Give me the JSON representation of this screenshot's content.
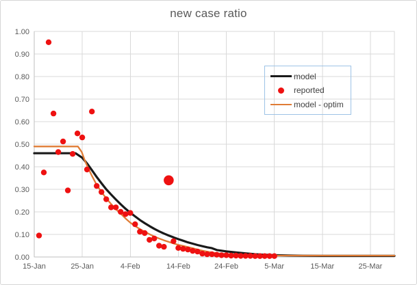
{
  "colors": {
    "model": "#1a1a1a",
    "reported": "#ee1111",
    "model_optim": "#e07c35",
    "grid": "#d9d9d9",
    "axis_line": "#bfbfbf",
    "axis_text": "#595959",
    "title_text": "#595959",
    "legend_border": "#9dc3e6",
    "legend_text": "#404040",
    "frame_border": "#d6d6d6"
  },
  "chart_data": {
    "type": "line+scatter",
    "title": "new case ratio",
    "legend_position": "right-upper-inside",
    "grid": "on",
    "x_axis": {
      "unit": "date",
      "range_days": [
        0,
        75
      ],
      "ticks": [
        {
          "day": 0,
          "label": "15-Jan"
        },
        {
          "day": 10,
          "label": "25-Jan"
        },
        {
          "day": 20,
          "label": "4-Feb"
        },
        {
          "day": 30,
          "label": "14-Feb"
        },
        {
          "day": 40,
          "label": "24-Feb"
        },
        {
          "day": 50,
          "label": "5-Mar"
        },
        {
          "day": 60,
          "label": "15-Mar"
        },
        {
          "day": 70,
          "label": "25-Mar"
        }
      ]
    },
    "y_axis": {
      "min": 0,
      "max": 1,
      "tick_step": 0.1,
      "tick_labels": [
        "0.00",
        "0.10",
        "0.20",
        "0.30",
        "0.40",
        "0.50",
        "0.60",
        "0.70",
        "0.80",
        "0.90",
        "1.00"
      ]
    },
    "series": [
      {
        "name": "model",
        "type": "line",
        "color_key": "model",
        "width": 3.2,
        "points": [
          [
            0,
            0.46
          ],
          [
            8.6,
            0.46
          ],
          [
            10,
            0.44
          ],
          [
            11,
            0.415
          ],
          [
            12,
            0.385
          ],
          [
            13,
            0.355
          ],
          [
            14,
            0.327
          ],
          [
            15,
            0.3
          ],
          [
            16,
            0.277
          ],
          [
            17,
            0.255
          ],
          [
            18,
            0.234
          ],
          [
            19,
            0.214
          ],
          [
            20,
            0.196
          ],
          [
            21,
            0.18
          ],
          [
            22,
            0.164
          ],
          [
            23,
            0.15
          ],
          [
            24,
            0.137
          ],
          [
            25,
            0.125
          ],
          [
            26,
            0.114
          ],
          [
            27,
            0.104
          ],
          [
            28,
            0.095
          ],
          [
            29,
            0.087
          ],
          [
            30,
            0.079
          ],
          [
            31,
            0.072
          ],
          [
            32,
            0.065
          ],
          [
            33,
            0.059
          ],
          [
            34,
            0.053
          ],
          [
            35,
            0.048
          ],
          [
            36,
            0.043
          ],
          [
            37,
            0.039
          ],
          [
            38,
            0.031
          ],
          [
            40,
            0.025
          ],
          [
            42,
            0.02
          ],
          [
            44,
            0.016
          ],
          [
            46,
            0.012
          ],
          [
            48,
            0.01
          ],
          [
            50,
            0.008
          ],
          [
            53,
            0.0065
          ],
          [
            56,
            0.0055
          ],
          [
            60,
            0.005
          ],
          [
            75,
            0.005
          ]
        ]
      },
      {
        "name": "reported",
        "type": "scatter",
        "color_key": "reported",
        "marker_radius": 4.2,
        "outlier_day": 28,
        "outlier_marker_radius": 7.3,
        "points": [
          [
            1,
            0.095
          ],
          [
            2,
            0.375
          ],
          [
            3,
            0.952
          ],
          [
            4,
            0.636
          ],
          [
            5,
            0.465
          ],
          [
            6,
            0.512
          ],
          [
            7,
            0.295
          ],
          [
            8,
            0.457
          ],
          [
            9,
            0.548
          ],
          [
            10,
            0.53
          ],
          [
            11,
            0.388
          ],
          [
            12,
            0.645
          ],
          [
            13,
            0.315
          ],
          [
            14,
            0.288
          ],
          [
            15,
            0.256
          ],
          [
            16,
            0.22
          ],
          [
            17,
            0.22
          ],
          [
            18,
            0.2
          ],
          [
            19,
            0.19
          ],
          [
            20,
            0.195
          ],
          [
            21,
            0.145
          ],
          [
            22,
            0.112
          ],
          [
            23,
            0.106
          ],
          [
            24,
            0.076
          ],
          [
            25,
            0.082
          ],
          [
            26,
            0.05
          ],
          [
            27,
            0.045
          ],
          [
            28,
            0.34
          ],
          [
            29,
            0.07
          ],
          [
            30,
            0.04
          ],
          [
            31,
            0.036
          ],
          [
            32,
            0.033
          ],
          [
            33,
            0.027
          ],
          [
            34,
            0.024
          ],
          [
            35,
            0.015
          ],
          [
            36,
            0.012
          ],
          [
            37,
            0.012
          ],
          [
            38,
            0.01
          ],
          [
            39,
            0.008
          ],
          [
            40,
            0.008
          ],
          [
            41,
            0.006
          ],
          [
            42,
            0.006
          ],
          [
            43,
            0.005
          ],
          [
            44,
            0.005
          ],
          [
            45,
            0.005
          ],
          [
            46,
            0.004
          ],
          [
            47,
            0.004
          ],
          [
            48,
            0.004
          ],
          [
            49,
            0.004
          ],
          [
            50,
            0.004
          ]
        ]
      },
      {
        "name": "model - optim",
        "type": "line",
        "color_key": "model_optim",
        "width": 2.3,
        "points": [
          [
            0,
            0.49
          ],
          [
            9.1,
            0.49
          ],
          [
            9.9,
            0.465
          ],
          [
            10.5,
            0.43
          ],
          [
            11,
            0.405
          ],
          [
            12,
            0.36
          ],
          [
            13,
            0.32
          ],
          [
            14,
            0.288
          ],
          [
            15,
            0.26
          ],
          [
            16,
            0.235
          ],
          [
            17,
            0.212
          ],
          [
            18,
            0.192
          ],
          [
            19,
            0.171
          ],
          [
            20,
            0.152
          ],
          [
            21,
            0.137
          ],
          [
            22,
            0.124
          ],
          [
            23,
            0.112
          ],
          [
            24,
            0.101
          ],
          [
            25,
            0.091
          ],
          [
            26,
            0.082
          ],
          [
            27,
            0.074
          ],
          [
            28,
            0.067
          ],
          [
            29,
            0.06
          ],
          [
            30,
            0.054
          ],
          [
            31,
            0.049
          ],
          [
            32,
            0.044
          ],
          [
            33,
            0.039
          ],
          [
            34,
            0.033
          ],
          [
            35,
            0.028
          ],
          [
            36,
            0.024
          ],
          [
            37,
            0.02
          ],
          [
            38,
            0.017
          ],
          [
            39,
            0.015
          ],
          [
            40,
            0.013
          ],
          [
            42,
            0.01
          ],
          [
            44,
            0.008
          ],
          [
            46,
            0.007
          ],
          [
            48,
            0.0065
          ],
          [
            50,
            0.006
          ],
          [
            75,
            0.006
          ]
        ]
      }
    ]
  }
}
